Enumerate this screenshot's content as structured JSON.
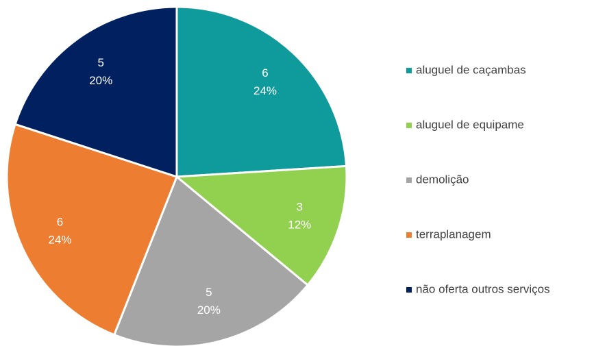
{
  "chart_data": {
    "type": "pie",
    "categories": [
      "aluguel de caçambas",
      "aluguel de equipame",
      "demolição",
      "terraplanagem",
      "não oferta outros serviços"
    ],
    "values": [
      6,
      3,
      5,
      6,
      5
    ],
    "percent_labels": [
      "24%",
      "12%",
      "20%",
      "24%",
      "20%"
    ],
    "colors": [
      "#0f9a9b",
      "#92d050",
      "#a5a5a5",
      "#ed7d31",
      "#002060"
    ],
    "legend": "right"
  }
}
